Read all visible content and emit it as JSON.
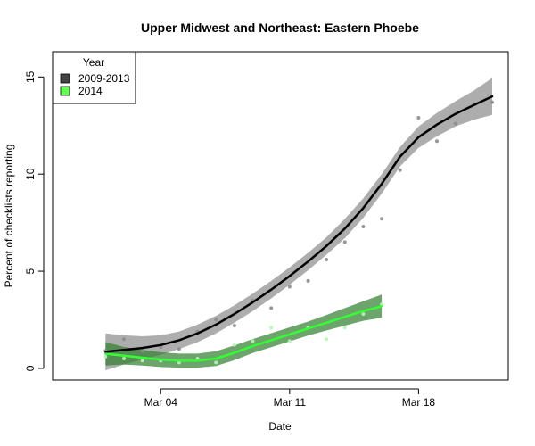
{
  "chart_data": {
    "type": "scatter",
    "title": "Upper Midwest and Northeast: Eastern Phoebe",
    "xlabel": "Date",
    "ylabel": "Percent of checklists reporting",
    "x_ticks": [
      "Mar 04",
      "Mar 11",
      "Mar 18"
    ],
    "x_tick_dates": [
      "2000-03-04",
      "2000-03-11",
      "2000-03-18"
    ],
    "xlim": [
      "2000-02-28",
      "2000-03-22"
    ],
    "y_ticks": [
      0,
      5,
      10,
      15
    ],
    "ylim": [
      -0.6,
      16.3
    ],
    "grid": false,
    "legend": {
      "title": "Year",
      "placement": "top-left"
    },
    "series": [
      {
        "name": "2009-2013",
        "color": "#000000",
        "point_color": "#8c8c8c",
        "band_color": "#4a4a4a",
        "legend_color": "#444444",
        "points": [
          [
            "2000-03-01",
            0.9
          ],
          [
            "2000-03-02",
            1.5
          ],
          [
            "2000-03-03",
            0.9
          ],
          [
            "2000-03-04",
            1.1
          ],
          [
            "2000-03-05",
            1.0
          ],
          [
            "2000-03-06",
            1.9
          ],
          [
            "2000-03-07",
            2.5
          ],
          [
            "2000-03-08",
            2.2
          ],
          [
            "2000-03-09",
            3.5
          ],
          [
            "2000-03-10",
            3.1
          ],
          [
            "2000-03-11",
            4.2
          ],
          [
            "2000-03-12",
            4.5
          ],
          [
            "2000-03-13",
            5.6
          ],
          [
            "2000-03-14",
            6.5
          ],
          [
            "2000-03-15",
            7.3
          ],
          [
            "2000-03-16",
            7.7
          ],
          [
            "2000-03-17",
            10.2
          ],
          [
            "2000-03-18",
            12.9
          ],
          [
            "2000-03-19",
            11.7
          ],
          [
            "2000-03-20",
            12.6
          ],
          [
            "2000-03-21",
            13.6
          ],
          [
            "2000-03-22",
            13.7
          ]
        ],
        "smooth": [
          [
            "2000-03-01",
            0.85
          ],
          [
            "2000-03-02",
            0.95
          ],
          [
            "2000-03-03",
            1.05
          ],
          [
            "2000-03-04",
            1.2
          ],
          [
            "2000-03-05",
            1.45
          ],
          [
            "2000-03-06",
            1.8
          ],
          [
            "2000-03-07",
            2.25
          ],
          [
            "2000-03-08",
            2.8
          ],
          [
            "2000-03-09",
            3.4
          ],
          [
            "2000-03-10",
            4.05
          ],
          [
            "2000-03-11",
            4.75
          ],
          [
            "2000-03-12",
            5.5
          ],
          [
            "2000-03-13",
            6.3
          ],
          [
            "2000-03-14",
            7.2
          ],
          [
            "2000-03-15",
            8.25
          ],
          [
            "2000-03-16",
            9.5
          ],
          [
            "2000-03-17",
            10.9
          ],
          [
            "2000-03-18",
            11.9
          ],
          [
            "2000-03-19",
            12.55
          ],
          [
            "2000-03-20",
            13.1
          ],
          [
            "2000-03-21",
            13.55
          ],
          [
            "2000-03-22",
            14.0
          ]
        ],
        "band_halfwidth": [
          0.95,
          0.75,
          0.6,
          0.5,
          0.45,
          0.45,
          0.45,
          0.45,
          0.45,
          0.45,
          0.45,
          0.45,
          0.45,
          0.5,
          0.5,
          0.5,
          0.5,
          0.55,
          0.6,
          0.65,
          0.75,
          0.95
        ]
      },
      {
        "name": "2014",
        "color": "#33ff33",
        "point_color": "#b6f5b6",
        "band_color": "#2e7d2e",
        "legend_color": "#66ff55",
        "points": [
          [
            "2000-03-01",
            0.6
          ],
          [
            "2000-03-02",
            0.5
          ],
          [
            "2000-03-03",
            0.4
          ],
          [
            "2000-03-04",
            0.4
          ],
          [
            "2000-03-05",
            0.3
          ],
          [
            "2000-03-06",
            0.5
          ],
          [
            "2000-03-07",
            0.3
          ],
          [
            "2000-03-08",
            1.2
          ],
          [
            "2000-03-09",
            1.4
          ],
          [
            "2000-03-10",
            2.1
          ],
          [
            "2000-03-11",
            1.4
          ],
          [
            "2000-03-12",
            2.1
          ],
          [
            "2000-03-13",
            1.5
          ],
          [
            "2000-03-14",
            2.1
          ],
          [
            "2000-03-15",
            2.8
          ],
          [
            "2000-03-16",
            3.3
          ]
        ],
        "smooth": [
          [
            "2000-03-01",
            0.75
          ],
          [
            "2000-03-02",
            0.65
          ],
          [
            "2000-03-03",
            0.55
          ],
          [
            "2000-03-04",
            0.45
          ],
          [
            "2000-03-05",
            0.4
          ],
          [
            "2000-03-06",
            0.4
          ],
          [
            "2000-03-07",
            0.5
          ],
          [
            "2000-03-08",
            0.8
          ],
          [
            "2000-03-09",
            1.15
          ],
          [
            "2000-03-10",
            1.45
          ],
          [
            "2000-03-11",
            1.75
          ],
          [
            "2000-03-12",
            2.05
          ],
          [
            "2000-03-13",
            2.35
          ],
          [
            "2000-03-14",
            2.65
          ],
          [
            "2000-03-15",
            2.95
          ],
          [
            "2000-03-16",
            3.2
          ]
        ],
        "band_halfwidth": [
          0.6,
          0.45,
          0.4,
          0.38,
          0.36,
          0.36,
          0.38,
          0.38,
          0.36,
          0.36,
          0.36,
          0.36,
          0.4,
          0.45,
          0.5,
          0.6
        ]
      }
    ]
  }
}
